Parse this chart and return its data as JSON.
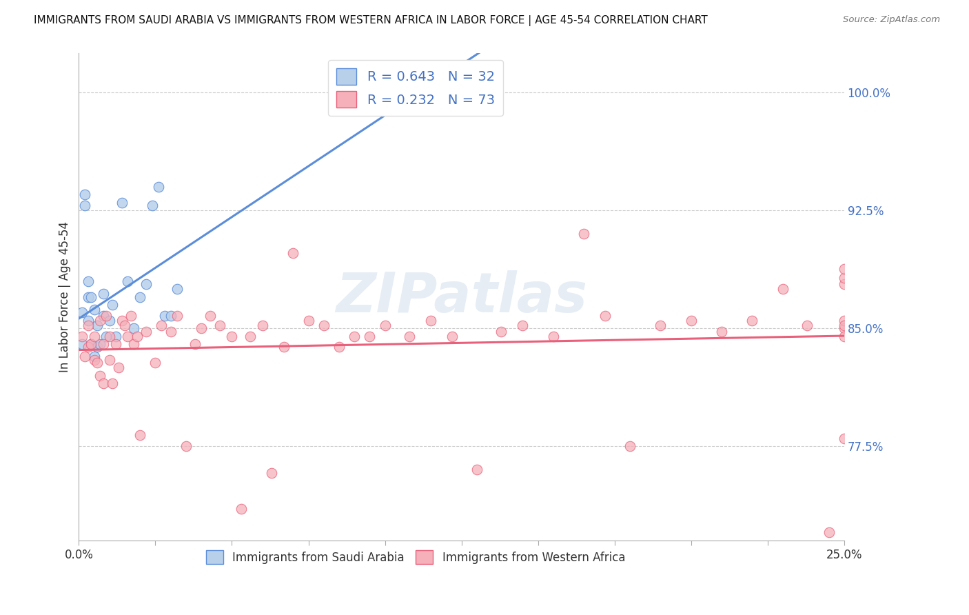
{
  "title": "IMMIGRANTS FROM SAUDI ARABIA VS IMMIGRANTS FROM WESTERN AFRICA IN LABOR FORCE | AGE 45-54 CORRELATION CHART",
  "source": "Source: ZipAtlas.com",
  "ylabel": "In Labor Force | Age 45-54",
  "legend_label_1": "Immigrants from Saudi Arabia",
  "legend_label_2": "Immigrants from Western Africa",
  "r1": 0.643,
  "n1": 32,
  "r2": 0.232,
  "n2": 73,
  "color_blue": "#b8d0ea",
  "color_pink": "#f5b0ba",
  "line_blue": "#5b8dd9",
  "line_pink": "#e8607a",
  "text_blue": "#4472c4",
  "xlim": [
    0.0,
    0.25
  ],
  "ylim": [
    0.715,
    1.025
  ],
  "xticks": [
    0.0,
    0.025,
    0.05,
    0.075,
    0.1,
    0.125,
    0.15,
    0.175,
    0.2,
    0.225,
    0.25
  ],
  "xtick_labels": [
    "0.0%",
    "",
    "",
    "",
    "",
    "",
    "",
    "",
    "",
    "",
    "25.0%"
  ],
  "yticks_right": [
    0.775,
    0.85,
    0.925,
    1.0
  ],
  "ytick_labels_right": [
    "77.5%",
    "85.0%",
    "92.5%",
    "100.0%"
  ],
  "blue_x": [
    0.001,
    0.001,
    0.002,
    0.002,
    0.003,
    0.003,
    0.003,
    0.004,
    0.004,
    0.005,
    0.005,
    0.006,
    0.006,
    0.007,
    0.008,
    0.008,
    0.009,
    0.01,
    0.011,
    0.012,
    0.014,
    0.016,
    0.018,
    0.02,
    0.022,
    0.024,
    0.026,
    0.028,
    0.03,
    0.032,
    0.1,
    0.11
  ],
  "blue_y": [
    0.84,
    0.86,
    0.928,
    0.935,
    0.855,
    0.87,
    0.88,
    0.84,
    0.87,
    0.832,
    0.862,
    0.838,
    0.852,
    0.84,
    0.858,
    0.872,
    0.845,
    0.855,
    0.865,
    0.845,
    0.93,
    0.88,
    0.85,
    0.87,
    0.878,
    0.928,
    0.94,
    0.858,
    0.858,
    0.875,
    1.0,
    1.0
  ],
  "pink_x": [
    0.001,
    0.002,
    0.003,
    0.003,
    0.004,
    0.005,
    0.005,
    0.006,
    0.007,
    0.007,
    0.008,
    0.008,
    0.009,
    0.01,
    0.01,
    0.011,
    0.012,
    0.013,
    0.014,
    0.015,
    0.016,
    0.017,
    0.018,
    0.019,
    0.02,
    0.022,
    0.025,
    0.027,
    0.03,
    0.032,
    0.035,
    0.038,
    0.04,
    0.043,
    0.046,
    0.05,
    0.053,
    0.056,
    0.06,
    0.063,
    0.067,
    0.07,
    0.075,
    0.08,
    0.085,
    0.09,
    0.095,
    0.1,
    0.108,
    0.115,
    0.122,
    0.13,
    0.138,
    0.145,
    0.155,
    0.165,
    0.172,
    0.18,
    0.19,
    0.2,
    0.21,
    0.22,
    0.23,
    0.238,
    0.245,
    0.25,
    0.25,
    0.25,
    0.25,
    0.25,
    0.25,
    0.25,
    0.25
  ],
  "pink_y": [
    0.845,
    0.832,
    0.838,
    0.852,
    0.84,
    0.83,
    0.845,
    0.828,
    0.82,
    0.855,
    0.815,
    0.84,
    0.858,
    0.83,
    0.845,
    0.815,
    0.84,
    0.825,
    0.855,
    0.852,
    0.845,
    0.858,
    0.84,
    0.845,
    0.782,
    0.848,
    0.828,
    0.852,
    0.848,
    0.858,
    0.775,
    0.84,
    0.85,
    0.858,
    0.852,
    0.845,
    0.735,
    0.845,
    0.852,
    0.758,
    0.838,
    0.898,
    0.855,
    0.852,
    0.838,
    0.845,
    0.845,
    0.852,
    0.845,
    0.855,
    0.845,
    0.76,
    0.848,
    0.852,
    0.845,
    0.91,
    0.858,
    0.775,
    0.852,
    0.855,
    0.848,
    0.855,
    0.875,
    0.852,
    0.72,
    0.78,
    0.85,
    0.855,
    0.845,
    0.852,
    0.878,
    0.882,
    0.888
  ]
}
